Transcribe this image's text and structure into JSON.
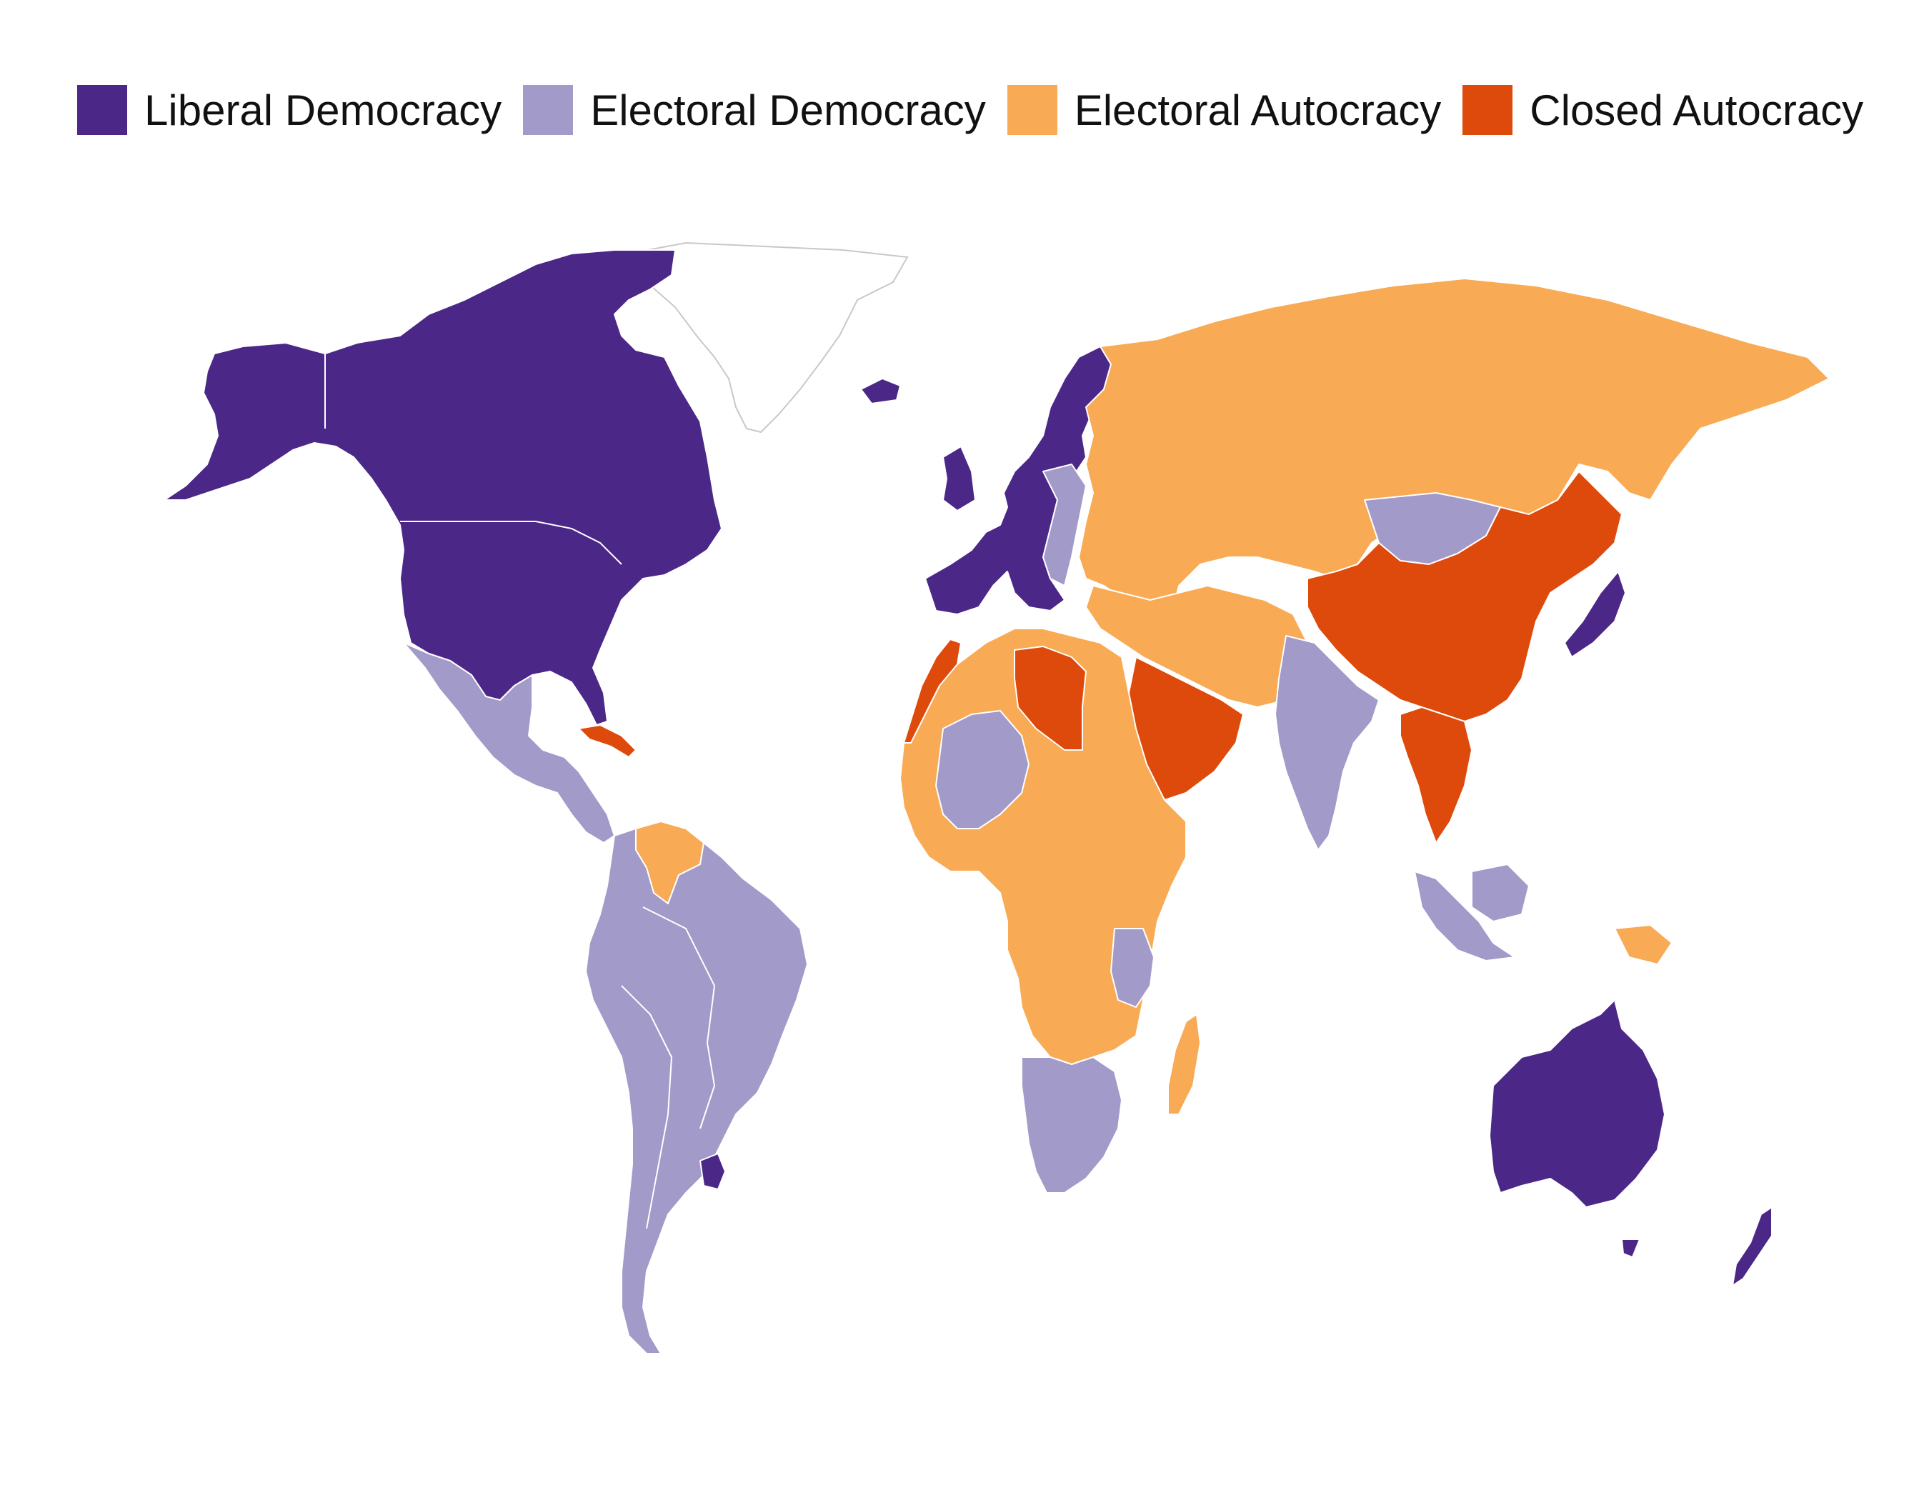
{
  "legend": {
    "items": [
      {
        "label": "Liberal Democracy",
        "color": "#4b2787"
      },
      {
        "label": "Electoral Democracy",
        "color": "#a29ac8"
      },
      {
        "label": "Electoral Autocracy",
        "color": "#f8aa55"
      },
      {
        "label": "Closed Autocracy",
        "color": "#de4a0b"
      }
    ]
  },
  "map": {
    "regions": [
      {
        "name": "North America",
        "regime": "Liberal Democracy"
      },
      {
        "name": "Mexico and Central America",
        "regime": "Electoral Democracy"
      },
      {
        "name": "Cuba",
        "regime": "Closed Autocracy"
      },
      {
        "name": "Venezuela",
        "regime": "Electoral Autocracy"
      },
      {
        "name": "South America",
        "regime": "Electoral Democracy"
      },
      {
        "name": "Uruguay",
        "regime": "Liberal Democracy"
      },
      {
        "name": "Western Europe",
        "regime": "Liberal Democracy"
      },
      {
        "name": "Eastern Europe",
        "regime": "Electoral Democracy"
      },
      {
        "name": "Russia and Central Asia",
        "regime": "Electoral Autocracy"
      },
      {
        "name": "China",
        "regime": "Closed Autocracy"
      },
      {
        "name": "Mongolia",
        "regime": "Electoral Democracy"
      },
      {
        "name": "India",
        "regime": "Electoral Democracy"
      },
      {
        "name": "Saudi Arabia and Yemen",
        "regime": "Closed Autocracy"
      },
      {
        "name": "Libya",
        "regime": "Closed Autocracy"
      },
      {
        "name": "Morocco",
        "regime": "Closed Autocracy"
      },
      {
        "name": "Africa",
        "regime": "Electoral Autocracy"
      },
      {
        "name": "Southern Africa",
        "regime": "Electoral Democracy"
      },
      {
        "name": "Madagascar",
        "regime": "Electoral Autocracy"
      },
      {
        "name": "Southeast Asia",
        "regime": "Closed Autocracy"
      },
      {
        "name": "Indonesia",
        "regime": "Electoral Democracy"
      },
      {
        "name": "Japan",
        "regime": "Liberal Democracy"
      },
      {
        "name": "Australia",
        "regime": "Liberal Democracy"
      },
      {
        "name": "New Zealand",
        "regime": "Liberal Democracy"
      },
      {
        "name": "Greenland",
        "regime": ""
      }
    ]
  }
}
